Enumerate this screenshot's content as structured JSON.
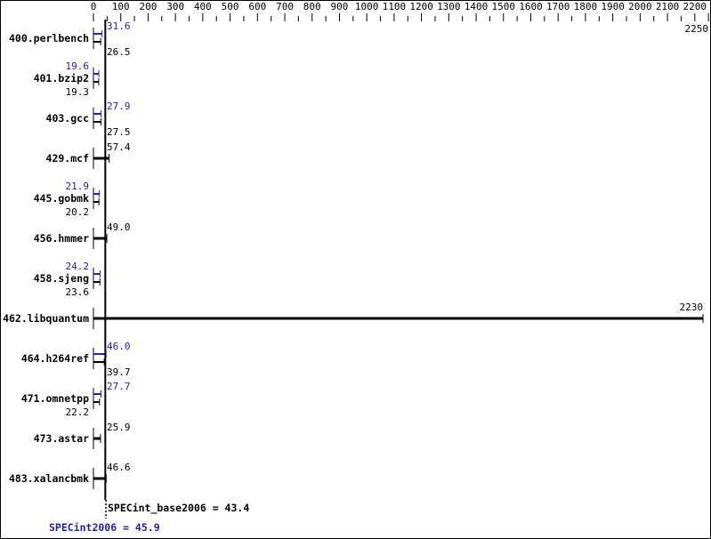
{
  "chart_data": {
    "type": "bar",
    "orientation": "horizontal",
    "xlim": [
      0,
      2250
    ],
    "x_ticks": [
      0,
      100,
      200,
      300,
      400,
      500,
      600,
      700,
      800,
      900,
      1000,
      1100,
      1200,
      1300,
      1400,
      1500,
      1600,
      1700,
      1800,
      1900,
      2000,
      2100,
      2200,
      2250
    ],
    "categories": [
      "400.perlbench",
      "401.bzip2",
      "403.gcc",
      "429.mcf",
      "445.gobmk",
      "456.hmmer",
      "458.sjeng",
      "462.libquantum",
      "464.h264ref",
      "471.omnetpp",
      "473.astar",
      "483.xalancbmk"
    ],
    "series": [
      {
        "name": "SPECint_base2006",
        "color": "#000000",
        "values": [
          26.5,
          19.3,
          27.5,
          57.4,
          20.2,
          49.0,
          23.6,
          2230,
          39.7,
          22.2,
          25.9,
          46.6
        ]
      },
      {
        "name": "SPECint2006",
        "color": "#2222aa",
        "values": [
          31.6,
          19.6,
          27.9,
          null,
          21.9,
          null,
          24.2,
          null,
          46.0,
          27.7,
          null,
          null
        ]
      }
    ],
    "value_labels": {
      "base": [
        "26.5",
        "19.3",
        "27.5",
        "57.4",
        "20.2",
        "49.0",
        "23.6",
        "2230",
        "39.7",
        "22.2",
        "25.9",
        "46.6"
      ],
      "peak": [
        "31.6",
        "19.6",
        "27.9",
        null,
        "21.9",
        null,
        "24.2",
        null,
        "46.0",
        "27.7",
        null,
        null
      ]
    },
    "summary": {
      "base_label": "SPECint_base2006 = 43.4",
      "base_value": 43.4,
      "peak_label": "SPECint2006 = 45.9",
      "peak_value": 45.9
    }
  }
}
